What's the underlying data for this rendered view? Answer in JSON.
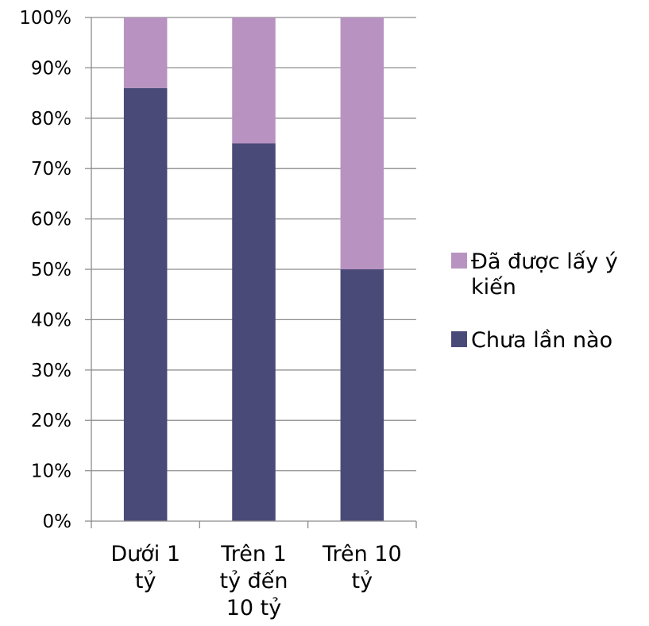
{
  "chart_data": {
    "type": "bar",
    "stacked": true,
    "percent": true,
    "categories": [
      [
        "Dưới 1",
        "tỷ"
      ],
      [
        "Trên 1",
        "tỷ đến",
        "10 tỷ"
      ],
      [
        "Trên 10",
        "tỷ"
      ]
    ],
    "series": [
      {
        "name": "Chưa lần nào",
        "color": "#4a4a78",
        "values": [
          86,
          75,
          50
        ]
      },
      {
        "name": "Đã được lấy ý kiến",
        "legend_lines": [
          "Đã được lấy ý",
          "kiến"
        ],
        "color": "#b893c1",
        "values": [
          14,
          25,
          50
        ]
      }
    ],
    "y_ticks": [
      "0%",
      "10%",
      "20%",
      "30%",
      "40%",
      "50%",
      "60%",
      "70%",
      "80%",
      "90%",
      "100%"
    ],
    "ylim": [
      0,
      100
    ],
    "grid": true,
    "gridline_color": "#8c8c8c",
    "legend_position": "right"
  }
}
